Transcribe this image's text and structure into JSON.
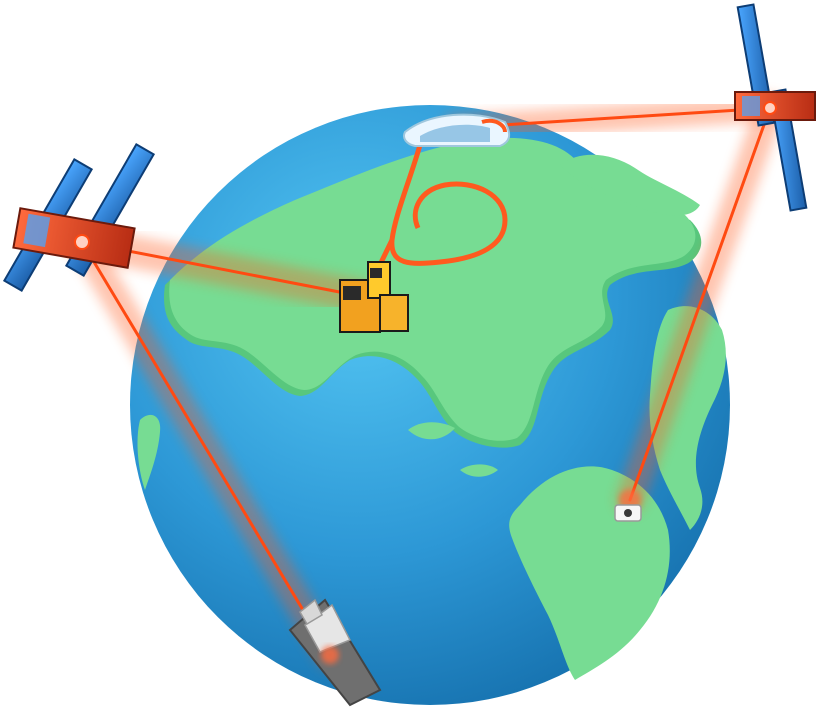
{
  "scene": {
    "colors": {
      "background": "#ffffff",
      "ocean": "#2f9bd6",
      "ocean_deep": "#1572b3",
      "land": "#77dc93",
      "beam": "#ff4a12",
      "solar_panel": "#2f86d8",
      "satellite_body": "#ff3d17"
    }
  }
}
